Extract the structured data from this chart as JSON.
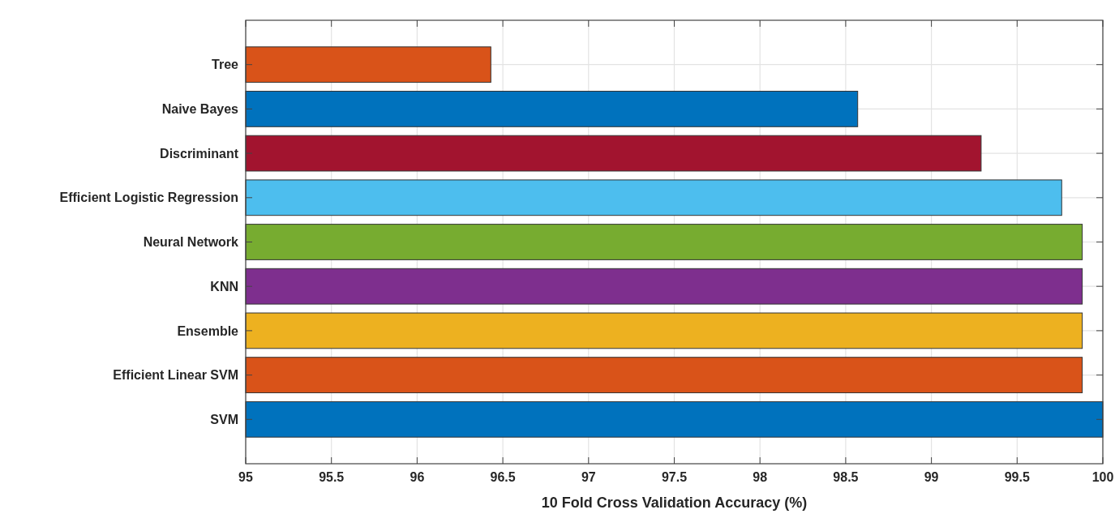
{
  "chart_data": {
    "type": "bar",
    "orientation": "horizontal",
    "xlabel": "10 Fold Cross Validation Accuracy (%)",
    "categories": [
      "Tree",
      "Naive Bayes",
      "Discriminant",
      "Efficient Logistic Regression",
      "Neural Network",
      "KNN",
      "Ensemble",
      "Efficient Linear SVM",
      "SVM"
    ],
    "values": [
      96.43,
      98.57,
      99.29,
      99.76,
      99.88,
      99.88,
      99.88,
      99.88,
      100
    ],
    "colors": [
      "#d95319",
      "#0072bd",
      "#a2142f",
      "#4dbeee",
      "#77ac30",
      "#7e2f8e",
      "#edb120",
      "#d95319",
      "#0072bd"
    ],
    "xlim": [
      95,
      100
    ],
    "xticks": [
      95,
      95.5,
      96,
      96.5,
      97,
      97.5,
      98,
      98.5,
      99,
      99.5,
      100
    ],
    "grid": true
  }
}
